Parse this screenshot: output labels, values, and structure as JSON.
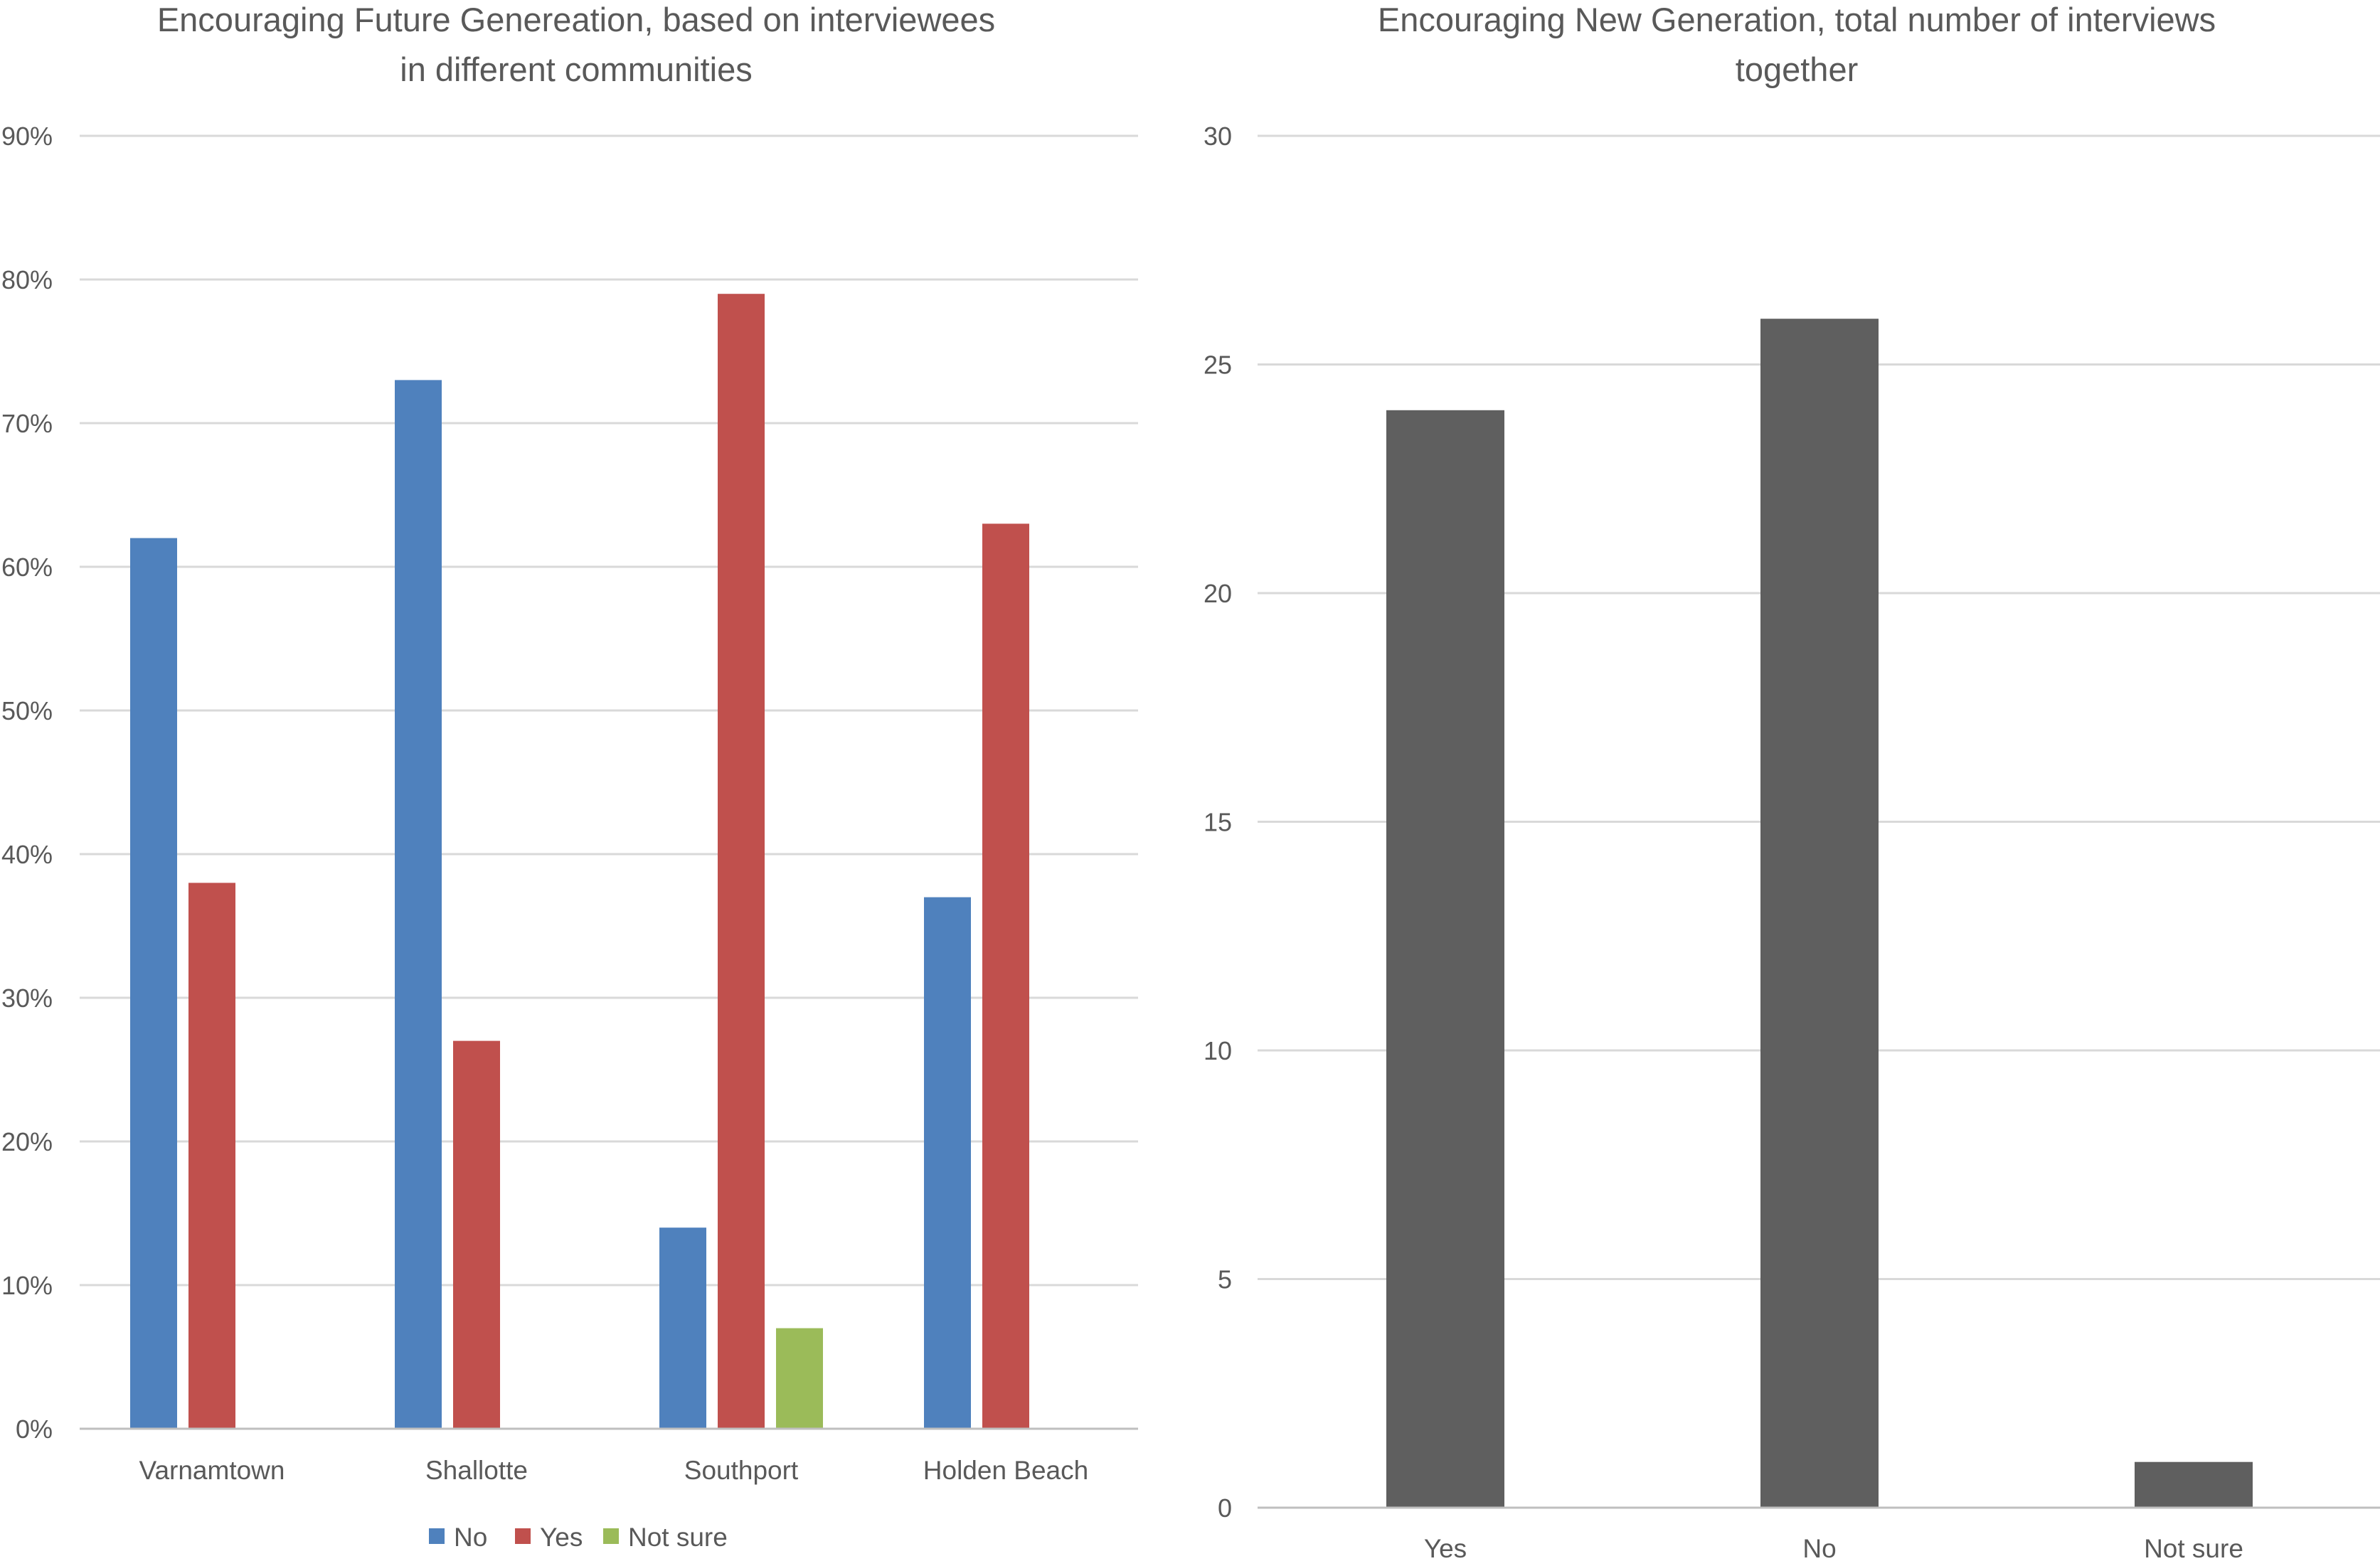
{
  "chart_data": [
    {
      "type": "bar",
      "title_lines": [
        "Encouraging Future Genereation, based on interviewees",
        "in different communities"
      ],
      "categories": [
        "Varnamtown",
        "Shallotte",
        "Southport",
        "Holden Beach"
      ],
      "series": [
        {
          "name": "No",
          "color": "#4f81bd",
          "values": [
            62,
            73,
            14,
            37
          ]
        },
        {
          "name": "Yes",
          "color": "#c0504d",
          "values": [
            38,
            27,
            79,
            63
          ]
        },
        {
          "name": "Not sure",
          "color": "#9bbb59",
          "values": [
            0,
            0,
            7,
            0
          ]
        }
      ],
      "ylim": [
        0,
        90
      ],
      "yticks": [
        0,
        10,
        20,
        30,
        40,
        50,
        60,
        70,
        80,
        90
      ],
      "ytick_labels": [
        "0%",
        "10%",
        "20%",
        "30%",
        "40%",
        "50%",
        "60%",
        "70%",
        "80%",
        "90%"
      ],
      "xlabel": "",
      "ylabel": "",
      "grid": true,
      "legend_position": "bottom"
    },
    {
      "type": "bar",
      "title_lines": [
        "Encouraging New Generation, total number of interviews",
        "together"
      ],
      "categories": [
        "Yes",
        "No",
        "Not sure"
      ],
      "values": [
        24,
        26,
        1
      ],
      "color": "#5f5f5f",
      "ylim": [
        0,
        30
      ],
      "yticks": [
        0,
        5,
        10,
        15,
        20,
        25,
        30
      ],
      "ytick_labels": [
        "0",
        "5",
        "10",
        "15",
        "20",
        "25",
        "30"
      ],
      "xlabel": "",
      "ylabel": "",
      "grid": true,
      "legend_position": "none"
    }
  ]
}
